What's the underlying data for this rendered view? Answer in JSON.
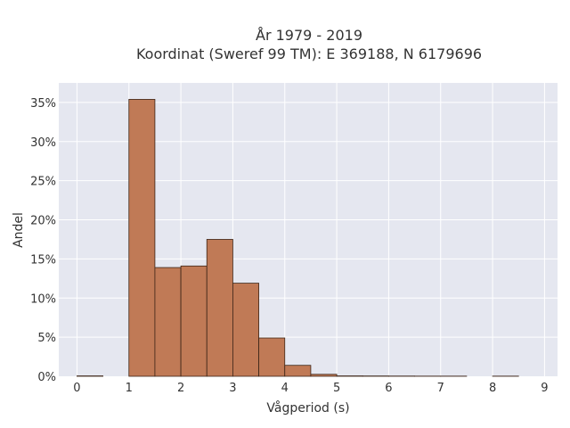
{
  "chart_data": {
    "type": "bar",
    "title_lines": [
      "År 1979 - 2019",
      "Koordinat (Sweref 99 TM): E 369188, N 6179696"
    ],
    "xlabel": "Vågperiod (s)",
    "ylabel": "Andel",
    "bin_width": 0.5,
    "bins": [
      {
        "x0": 0.0,
        "value": 0.0005
      },
      {
        "x0": 0.5,
        "value": 0.0
      },
      {
        "x0": 1.0,
        "value": 0.354
      },
      {
        "x0": 1.5,
        "value": 0.139
      },
      {
        "x0": 2.0,
        "value": 0.141
      },
      {
        "x0": 2.5,
        "value": 0.175
      },
      {
        "x0": 3.0,
        "value": 0.119
      },
      {
        "x0": 3.5,
        "value": 0.049
      },
      {
        "x0": 4.0,
        "value": 0.014
      },
      {
        "x0": 4.5,
        "value": 0.0025
      },
      {
        "x0": 5.0,
        "value": 0.0005
      },
      {
        "x0": 5.5,
        "value": 0.0004
      },
      {
        "x0": 6.0,
        "value": 0.0003
      },
      {
        "x0": 6.5,
        "value": 0.0002
      },
      {
        "x0": 7.0,
        "value": 0.0002
      },
      {
        "x0": 7.5,
        "value": 0.0
      },
      {
        "x0": 8.0,
        "value": 0.0002
      }
    ],
    "xlim": [
      -0.35,
      9.25
    ],
    "ylim": [
      0,
      0.375
    ],
    "xticks": [
      "0",
      "1",
      "2",
      "3",
      "4",
      "5",
      "6",
      "7",
      "8",
      "9"
    ],
    "yticks": [
      {
        "value": 0.0,
        "label": "0%"
      },
      {
        "value": 0.05,
        "label": "5%"
      },
      {
        "value": 0.1,
        "label": "10%"
      },
      {
        "value": 0.15,
        "label": "15%"
      },
      {
        "value": 0.2,
        "label": "20%"
      },
      {
        "value": 0.25,
        "label": "25%"
      },
      {
        "value": 0.3,
        "label": "30%"
      },
      {
        "value": 0.35,
        "label": "35%"
      }
    ],
    "grid": true,
    "colors": {
      "bar_fill": "#c07a56",
      "bar_edge": "#3b2416",
      "plot_background": "#e5e7f0",
      "grid": "#ffffff"
    }
  }
}
